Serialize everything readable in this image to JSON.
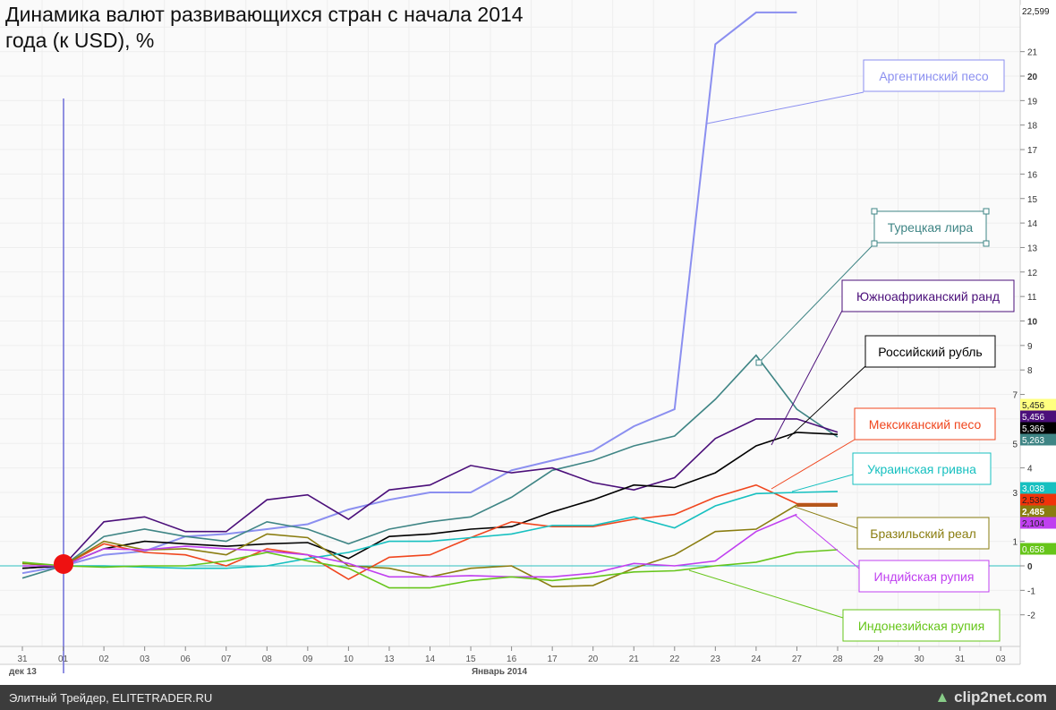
{
  "chart_data": {
    "type": "line",
    "title": "Динамика валют развивающихся стран с начала 2014 года (к USD), %",
    "x": [
      "31",
      "01",
      "02",
      "03",
      "06",
      "07",
      "08",
      "09",
      "10",
      "13",
      "14",
      "15",
      "16",
      "17",
      "20",
      "21",
      "22",
      "23",
      "24",
      "27",
      "28"
    ],
    "x_extra_ticks": [
      "29",
      "30",
      "31",
      "03"
    ],
    "x_groups": [
      "дек 13",
      "Январь 2014"
    ],
    "ylim": [
      -3,
      22.6
    ],
    "y_ticks": [
      "-2",
      "-1",
      "0",
      "1",
      "3",
      "4",
      "5",
      "7",
      "8",
      "9",
      "10",
      "11",
      "12",
      "13",
      "14",
      "15",
      "16",
      "17",
      "18",
      "19",
      "20",
      "21"
    ],
    "series": [
      {
        "name": "Аргентинский песо",
        "color": "#8b8ff0",
        "values": [
          -0.3,
          0,
          0.45,
          0.6,
          1.2,
          1.3,
          1.5,
          1.7,
          2.3,
          2.7,
          3.0,
          3.0,
          3.9,
          4.3,
          4.7,
          5.7,
          6.4,
          21.3,
          22.6,
          22.599,
          null
        ],
        "last": "22,599",
        "last_bg": "#ffffff",
        "last_fg": "#222"
      },
      {
        "name": "Турецкая лира",
        "color": "#3f8585",
        "values": [
          -0.5,
          0,
          1.2,
          1.5,
          1.2,
          1.0,
          1.8,
          1.5,
          0.9,
          1.5,
          1.8,
          2.0,
          2.8,
          3.9,
          4.3,
          4.9,
          5.3,
          6.8,
          8.6,
          6.4,
          5.263
        ],
        "last": "5,263",
        "last_bg": "#3f8585",
        "last_fg": "#fff"
      },
      {
        "name": "Южноафриканский ранд",
        "color": "#4b0f7a",
        "values": [
          -0.1,
          0,
          1.8,
          2.0,
          1.4,
          1.4,
          2.7,
          2.9,
          1.9,
          3.1,
          3.3,
          4.1,
          3.8,
          4.0,
          3.4,
          3.1,
          3.6,
          5.2,
          6.0,
          6.0,
          5.456
        ],
        "last": "5,456",
        "last_bg": "#4b0f7a",
        "last_fg": "#fff"
      },
      {
        "name": "Российский рубль",
        "color": "#000000",
        "values": [
          -0.1,
          0,
          0.7,
          1.0,
          0.9,
          0.8,
          0.9,
          0.95,
          0.3,
          1.2,
          1.3,
          1.5,
          1.6,
          2.2,
          2.7,
          3.3,
          3.2,
          3.8,
          4.9,
          5.45,
          5.366
        ],
        "last": "5,366",
        "last_bg": "#000",
        "last_fg": "#fff"
      },
      {
        "name": "Мексиканский песо",
        "color": "#f0461e",
        "values": [
          0.1,
          0,
          0.9,
          0.55,
          0.45,
          0,
          0.7,
          0.45,
          -0.55,
          0.35,
          0.45,
          1.15,
          1.8,
          1.6,
          1.6,
          1.9,
          2.1,
          2.8,
          3.3,
          2.54,
          2.536
        ],
        "last": "2,536",
        "last_bg": "#f0330a",
        "last_fg": "#222"
      },
      {
        "name": "Украинская гривна",
        "color": "#17c0c0",
        "values": [
          0.1,
          0,
          0,
          -0.05,
          -0.1,
          -0.1,
          0,
          0.3,
          0.55,
          1.0,
          1.0,
          1.15,
          1.3,
          1.65,
          1.65,
          2.0,
          1.55,
          2.45,
          2.95,
          3.0,
          3.038
        ],
        "last": "3,038",
        "last_bg": "#17c0c0",
        "last_fg": "#fff"
      },
      {
        "name": "Бразильский реал",
        "color": "#8a7d10",
        "values": [
          0.1,
          0,
          1.0,
          0.65,
          0.7,
          0.45,
          1.3,
          1.15,
          0,
          -0.1,
          -0.45,
          -0.1,
          0,
          -0.85,
          -0.8,
          -0.1,
          0.45,
          1.4,
          1.5,
          2.49,
          2.485
        ],
        "last": "2,485",
        "last_bg": "#8a7d10",
        "last_fg": "#fff"
      },
      {
        "name": "Индийская рупия",
        "color": "#c040f0",
        "values": [
          0,
          0,
          0.7,
          0.65,
          0.8,
          0.7,
          0.6,
          0.45,
          0.1,
          -0.45,
          -0.45,
          -0.4,
          -0.45,
          -0.45,
          -0.3,
          0.1,
          0,
          0.2,
          1.4,
          2.104,
          null
        ],
        "last": "2,104",
        "last_bg": "#c040f0",
        "last_fg": "#222"
      },
      {
        "name": "Индонезийская рупия",
        "color": "#66c51a",
        "values": [
          0.15,
          0,
          -0.05,
          0,
          0,
          0.2,
          0.55,
          0.2,
          -0.1,
          -0.9,
          -0.9,
          -0.6,
          -0.45,
          -0.6,
          -0.45,
          -0.25,
          -0.2,
          0,
          0.15,
          0.55,
          0.658
        ],
        "last": "0,658",
        "last_bg": "#66c51a",
        "last_fg": "#fff"
      }
    ],
    "extra_label": {
      "text": "5,456",
      "bg": "#ffff80"
    }
  },
  "footer": {
    "source": "Элитный Трейдер, ELITETRADER.RU",
    "logo": "clip2net.com"
  }
}
